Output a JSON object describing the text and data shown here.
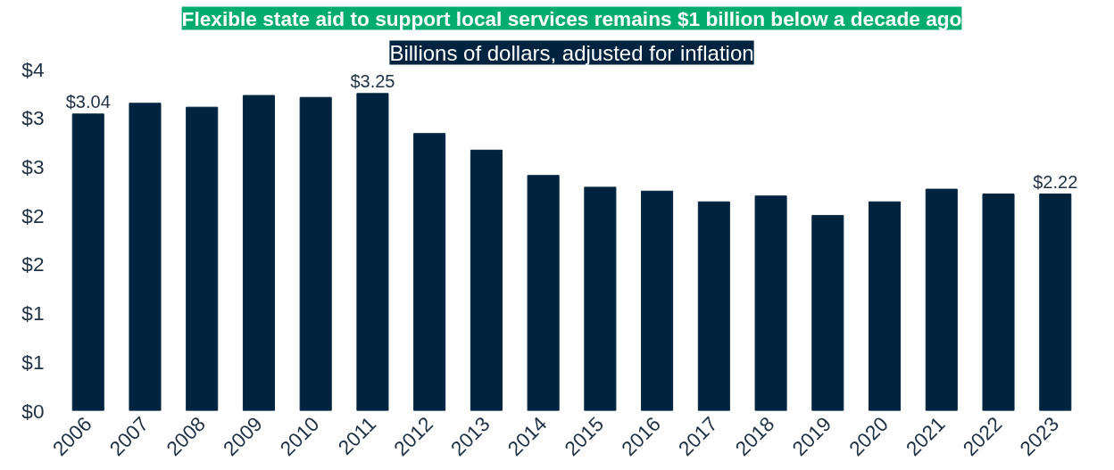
{
  "chart_data": {
    "type": "bar",
    "title": "Flexible state aid to support local services remains $1 billion below a decade ago",
    "subtitle": "Billions of dollars, adjusted for inflation",
    "categories": [
      "2006",
      "2007",
      "2008",
      "2009",
      "2010",
      "2011",
      "2012",
      "2013",
      "2014",
      "2015",
      "2016",
      "2017",
      "2018",
      "2019",
      "2020",
      "2021",
      "2022",
      "2023"
    ],
    "values": [
      3.04,
      3.15,
      3.11,
      3.23,
      3.21,
      3.25,
      2.84,
      2.67,
      2.41,
      2.29,
      2.25,
      2.14,
      2.2,
      2.0,
      2.14,
      2.27,
      2.22,
      2.22
    ],
    "value_labels": [
      "$3.04",
      null,
      null,
      null,
      null,
      "$3.25",
      null,
      null,
      null,
      null,
      null,
      null,
      null,
      null,
      null,
      null,
      null,
      "$2.22"
    ],
    "color": "#00243f",
    "ylim": [
      0,
      3.5
    ],
    "yticks": [
      {
        "value": 0,
        "label": "$0"
      },
      {
        "value": 0.5,
        "label": "$1"
      },
      {
        "value": 1,
        "label": "$1"
      },
      {
        "value": 1.5,
        "label": "$2"
      },
      {
        "value": 2,
        "label": "$2"
      },
      {
        "value": 2.5,
        "label": "$3"
      },
      {
        "value": 3,
        "label": "$3"
      },
      {
        "value": 3.5,
        "label": "$4"
      }
    ],
    "grid": false
  }
}
